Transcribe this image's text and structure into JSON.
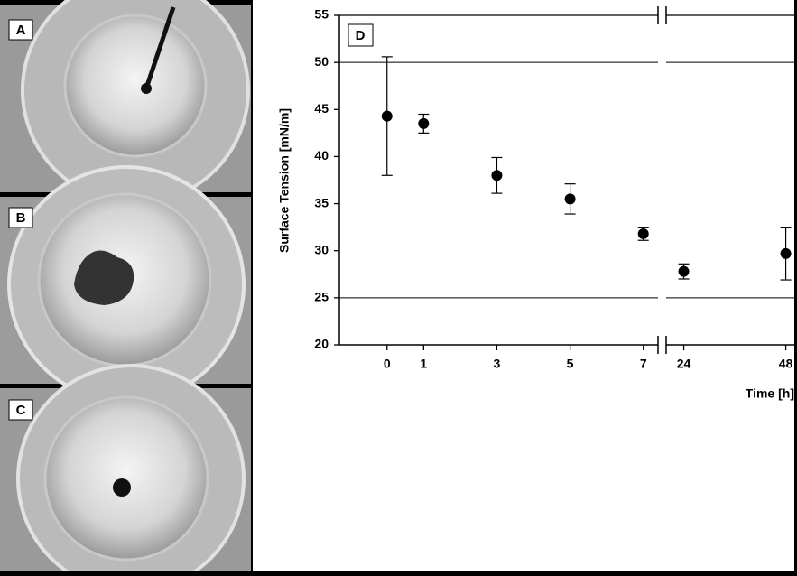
{
  "panels": [
    {
      "label": "A"
    },
    {
      "label": "B"
    },
    {
      "label": "C"
    }
  ],
  "chart_data": {
    "type": "scatter",
    "annotation": "D",
    "x_label": "Time [h]",
    "y_label": "Surface Tension [mN/m]",
    "x": [
      0,
      1,
      3,
      5,
      7,
      24,
      48
    ],
    "values": [
      44.3,
      43.5,
      38,
      35.5,
      31.8,
      27.8,
      29.7
    ],
    "errors": [
      6.3,
      1,
      1.9,
      1.6,
      0.7,
      0.8,
      2.8
    ],
    "xlim": [
      -1.3,
      50
    ],
    "xbreak": [
      7.5,
      20.7
    ],
    "xticks": [
      0,
      1,
      3,
      5,
      7,
      24,
      48
    ],
    "ylim": [
      20,
      55
    ],
    "yticks": [
      20,
      25,
      30,
      35,
      40,
      45,
      50,
      55
    ],
    "grid_lines": [
      25,
      50
    ],
    "color": "#000000"
  }
}
